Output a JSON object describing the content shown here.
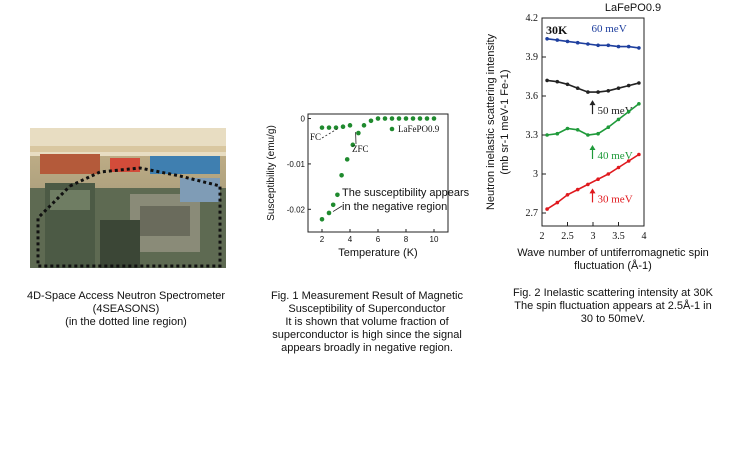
{
  "photo": {
    "caption_lines": [
      "4D-Space Access Neutron Spectrometer",
      "(4SEASONS)",
      "(in the dotted line region)"
    ]
  },
  "fig1": {
    "caption_lines": [
      "Fig. 1 Measurement Result of Magnetic",
      "Susceptibility of Superconductor",
      "It is shown that volume fraction of",
      "superconductor is high since the signal",
      "appears broadly in negative region."
    ]
  },
  "fig2": {
    "caption_lines": [
      "Fig. 2 Inelastic scattering intensity at 30K",
      "The spin fluctuation appears at 2.5Å-1 in",
      "30 to 50meV."
    ]
  },
  "chart_data": [
    {
      "type": "scatter",
      "title": "",
      "xlabel": "Temperature (K)",
      "ylabel": "Susceptibility (emu/g)",
      "xlim": [
        1,
        11
      ],
      "ylim": [
        -0.025,
        0.001
      ],
      "x_ticks": [
        "2",
        "4",
        "6",
        "8",
        "10"
      ],
      "y_ticks": [
        "0",
        "-0.01",
        "-0.02"
      ],
      "legend": "LaFePO0.9",
      "labels": {
        "fc": "FC",
        "zfc": "ZFC"
      },
      "annotation": [
        "The susceptibility appears",
        "in the negative region"
      ],
      "series": [
        {
          "name": "FC",
          "x": [
            2,
            2.5,
            3,
            3.5,
            4
          ],
          "y": [
            -0.002,
            -0.002,
            -0.002,
            -0.0018,
            -0.0015
          ]
        },
        {
          "name": "ZFC",
          "x": [
            2,
            2.5,
            2.8,
            3.1,
            3.4,
            3.8,
            4.2,
            4.6,
            5,
            5.5,
            6,
            6.5,
            7,
            7.5,
            8,
            8.5,
            9,
            9.5,
            10
          ],
          "y": [
            -0.0222,
            -0.0208,
            -0.019,
            -0.0168,
            -0.0125,
            -0.009,
            -0.0058,
            -0.0032,
            -0.0015,
            -0.0005,
            0,
            0,
            0,
            0,
            0,
            0,
            0,
            0,
            0
          ]
        }
      ]
    },
    {
      "type": "scatter",
      "title": "LaFePO0.9",
      "xlabel": [
        "Wave number of untiferromagnetic spin",
        "fluctuation (Å-1)"
      ],
      "ylabel": [
        "Neutron inelastic scattering intensity",
        "(mb sr-1 meV-1 Fe-1)"
      ],
      "xlim": [
        2,
        4
      ],
      "ylim": [
        2.6,
        4.2
      ],
      "x_ticks": [
        "2",
        "2.5",
        "3",
        "3.5",
        "4"
      ],
      "y_ticks": [
        "4.2",
        "3.9",
        "3.6",
        "3.3",
        "3",
        "2.7"
      ],
      "temperature_label": "30K",
      "series": [
        {
          "name": "60 meV",
          "color": "#1e3f9e",
          "x": [
            2.1,
            2.3,
            2.5,
            2.7,
            2.9,
            3.1,
            3.3,
            3.5,
            3.7,
            3.9
          ],
          "y": [
            4.04,
            4.03,
            4.02,
            4.01,
            4.0,
            3.99,
            3.99,
            3.98,
            3.98,
            3.97
          ]
        },
        {
          "name": "50 meV",
          "color": "#222222",
          "x": [
            2.1,
            2.3,
            2.5,
            2.7,
            2.9,
            3.1,
            3.3,
            3.5,
            3.7,
            3.9
          ],
          "y": [
            3.72,
            3.71,
            3.69,
            3.66,
            3.63,
            3.63,
            3.64,
            3.66,
            3.68,
            3.7
          ]
        },
        {
          "name": "40 meV",
          "color": "#1f9a3a",
          "x": [
            2.1,
            2.3,
            2.5,
            2.7,
            2.9,
            3.1,
            3.3,
            3.5,
            3.7,
            3.9
          ],
          "y": [
            3.3,
            3.31,
            3.35,
            3.34,
            3.3,
            3.31,
            3.36,
            3.42,
            3.48,
            3.54
          ]
        },
        {
          "name": "30 meV",
          "color": "#e0191e",
          "x": [
            2.1,
            2.3,
            2.5,
            2.7,
            2.9,
            3.1,
            3.3,
            3.5,
            3.7,
            3.9
          ],
          "y": [
            2.73,
            2.78,
            2.84,
            2.88,
            2.92,
            2.96,
            3.0,
            3.05,
            3.1,
            3.15
          ]
        }
      ]
    }
  ]
}
